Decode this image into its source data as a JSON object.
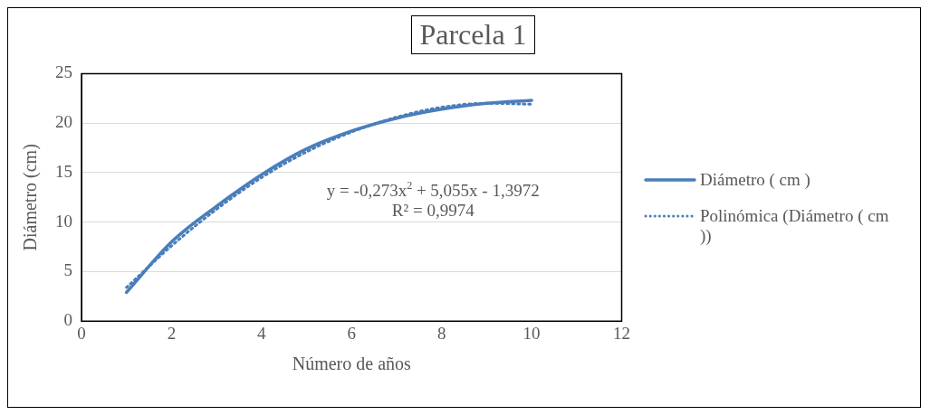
{
  "chart_data": {
    "type": "line",
    "title": "Parcela 1",
    "xlabel": "Número de años",
    "ylabel": "Diámetro (cm)",
    "xlim": [
      0,
      12
    ],
    "xticks": [
      0,
      2,
      4,
      6,
      8,
      10,
      12
    ],
    "ylim": [
      0,
      25
    ],
    "yticks": [
      0,
      5,
      10,
      15,
      20,
      25
    ],
    "grid": "y",
    "legend": "right",
    "marker": "none",
    "series": [
      {
        "name": "Diámetro ( cm )",
        "color": "#4a7ebb",
        "x": [
          1,
          2,
          3,
          4,
          5,
          6,
          7,
          8,
          9,
          10
        ],
        "values": [
          2.9,
          8.0,
          11.6,
          14.8,
          17.4,
          19.2,
          20.5,
          21.4,
          22.0,
          22.3
        ],
        "line_style": "solid"
      },
      {
        "name": "Polinómica (Diámetro ( cm ))",
        "color": "#4a7ebb",
        "type": "line",
        "x": [
          1,
          2,
          3,
          4,
          5,
          6,
          7,
          8,
          9,
          10
        ],
        "values": [
          3.4,
          7.6,
          11.3,
          14.5,
          17.1,
          19.1,
          20.6,
          21.6,
          22.0,
          21.9
        ],
        "line_style": "dotted"
      }
    ],
    "annotations": [
      "y = -0,273x$^{2}$ + 5,055x - 1,3972",
      "R² = 0,9974"
    ]
  }
}
